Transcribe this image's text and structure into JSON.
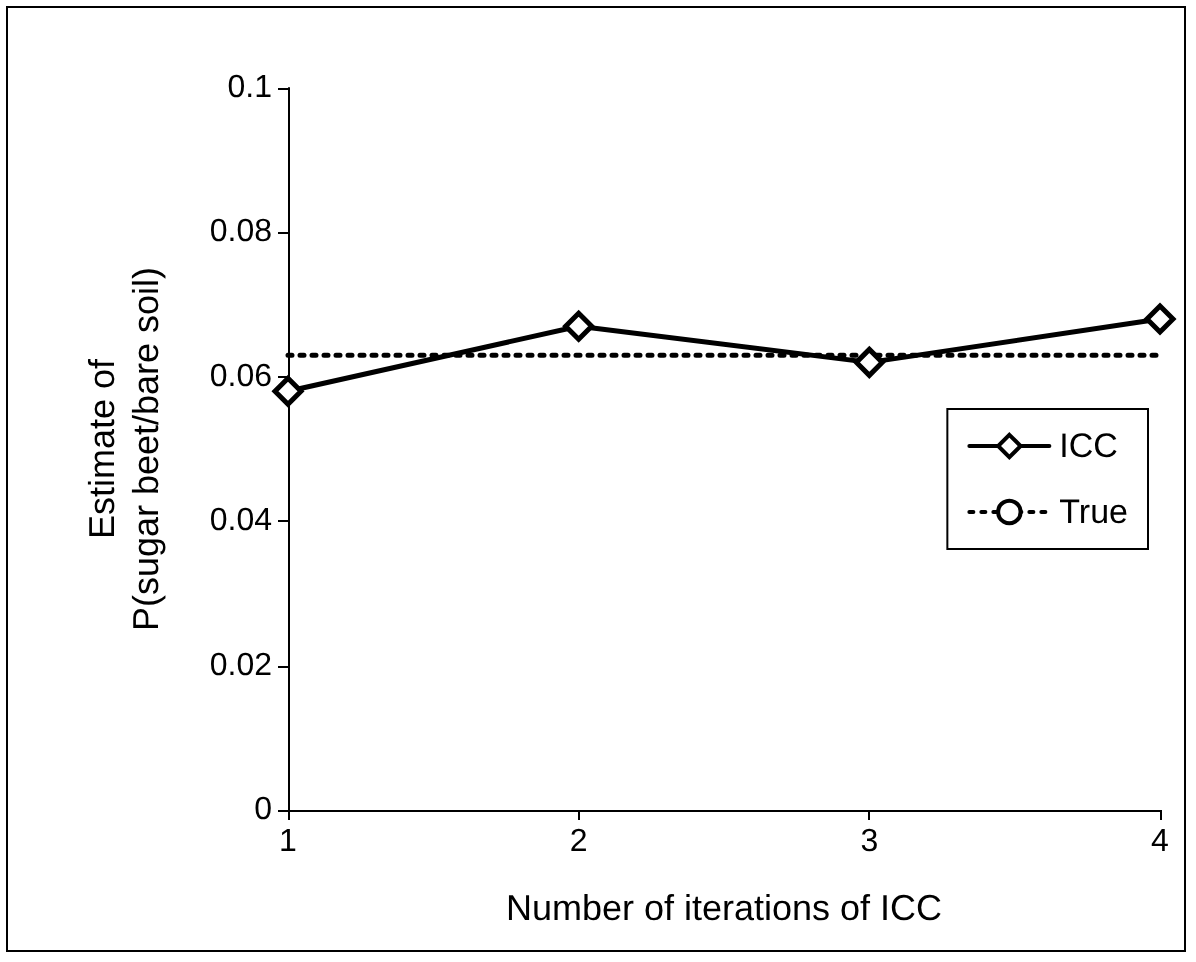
{
  "chart_data": {
    "type": "line",
    "xlabel": "Number of iterations of ICC",
    "ylabel": "Estimate of\nP(sugar beet/bare soil)",
    "x": [
      1,
      2,
      3,
      4
    ],
    "xlim": [
      1,
      4
    ],
    "xticks": [
      1,
      2,
      3,
      4
    ],
    "ylim": [
      0,
      0.1
    ],
    "yticks": [
      0,
      0.02,
      0.04,
      0.06,
      0.08,
      0.1
    ],
    "series": [
      {
        "name": "ICC",
        "color": "#000000",
        "values": [
          0.058,
          0.067,
          0.062,
          0.068
        ],
        "marker": "diamond",
        "line_style": "solid"
      },
      {
        "name": "True",
        "color": "#000000",
        "values": [
          0.063,
          0.063,
          0.063,
          0.063
        ],
        "marker": "none",
        "line_style": "dotted"
      }
    ],
    "grid": false,
    "legend": "right"
  }
}
